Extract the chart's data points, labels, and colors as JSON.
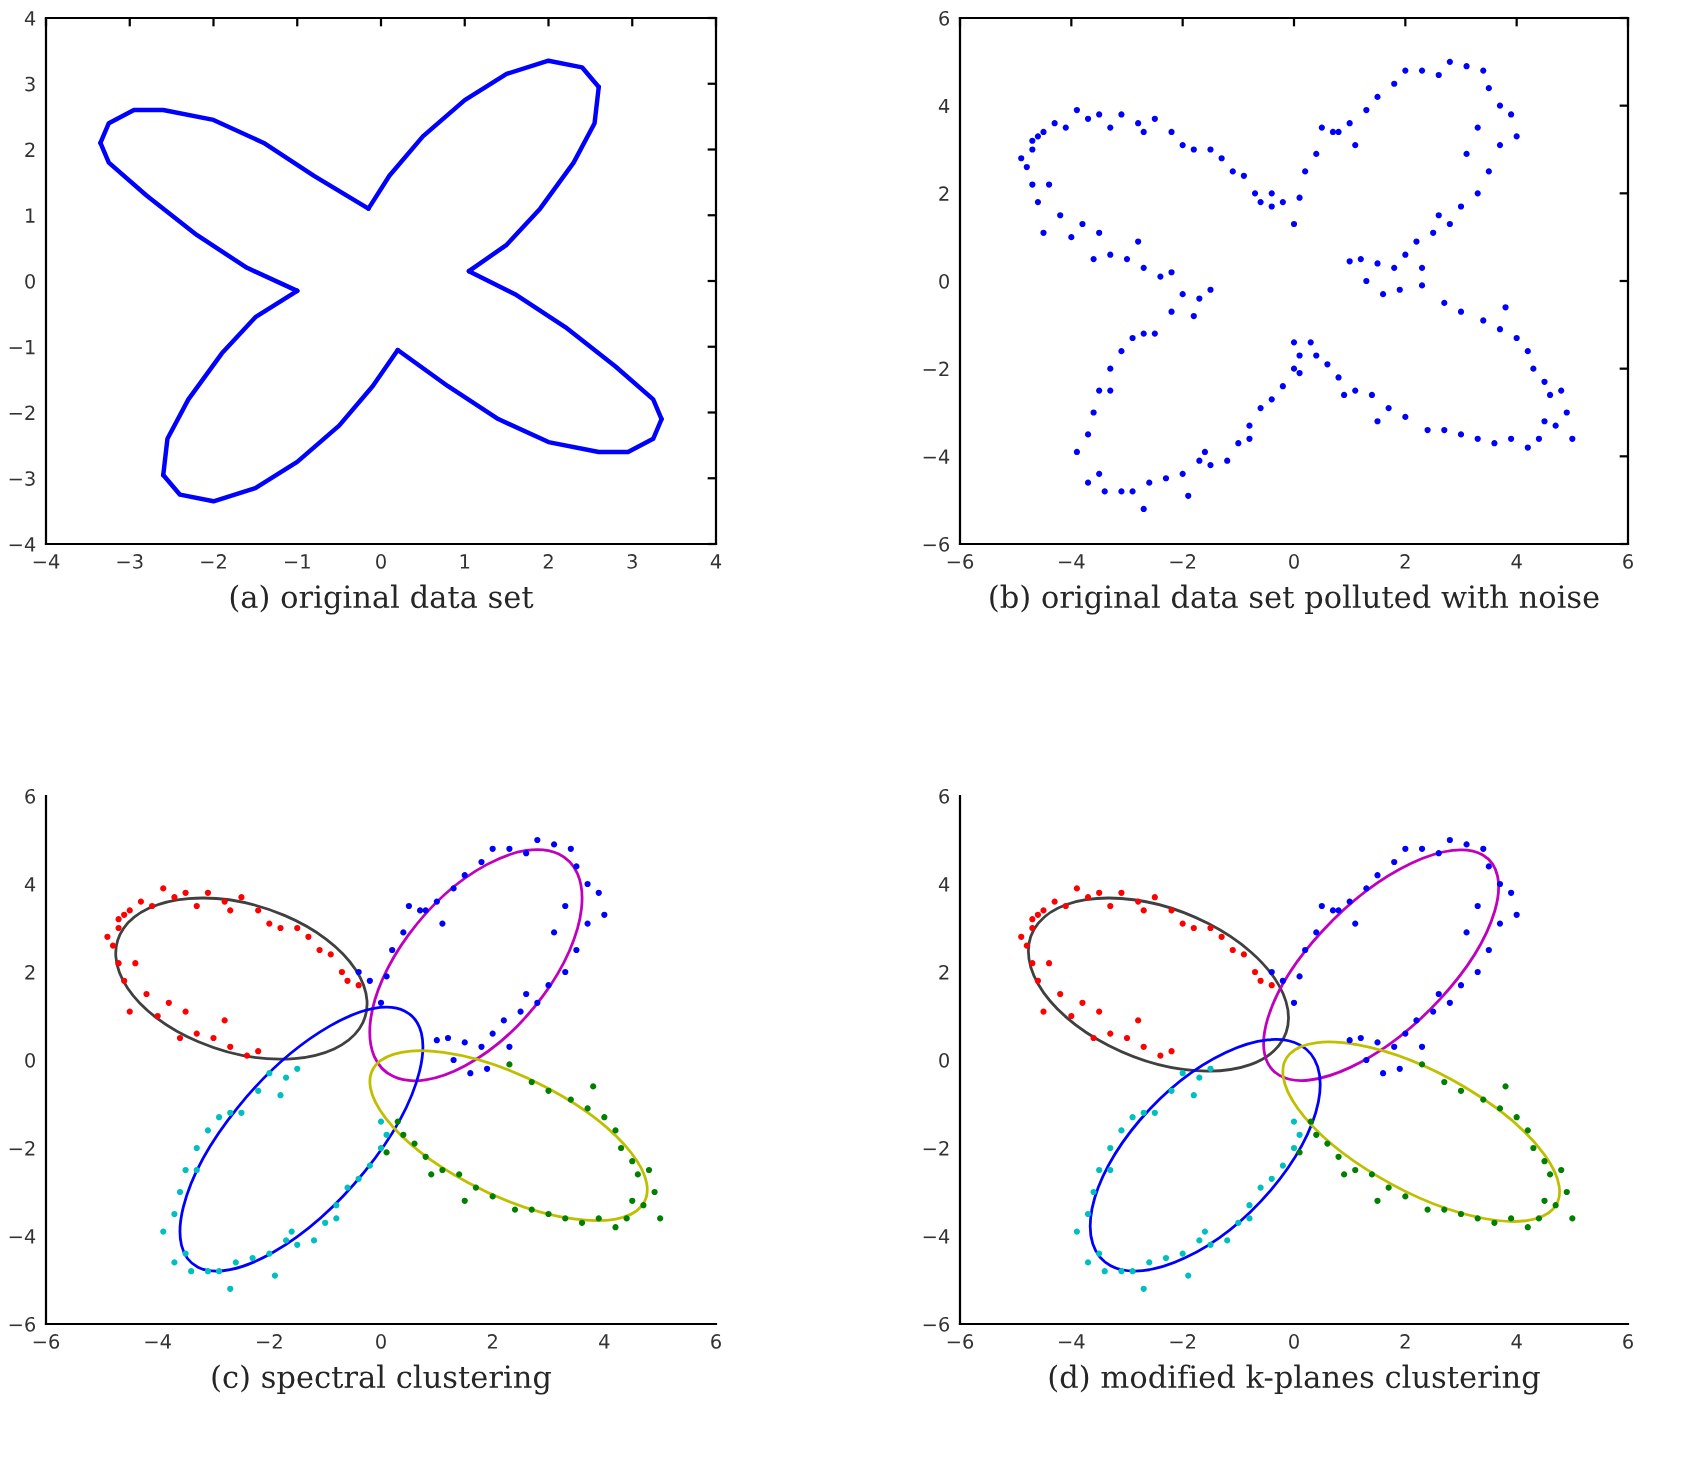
{
  "chart_data": [
    {
      "type": "line",
      "xlim": [
        -4,
        4
      ],
      "ylim": [
        -4,
        4
      ],
      "xticks": [
        -4,
        -3,
        -2,
        -1,
        0,
        1,
        2,
        3,
        4
      ],
      "yticks": [
        -4,
        -3,
        -2,
        -1,
        0,
        1,
        2,
        3,
        4
      ],
      "grid": false,
      "legend": false,
      "annotations": [
        "(a) original data set"
      ],
      "series": [
        {
          "color": "#0000ff",
          "x": [
            -0.15,
            0.1,
            0.5,
            1.0,
            1.5,
            2.0,
            2.4,
            2.6
          ],
          "values": [
            1.1,
            1.6,
            2.2,
            2.75,
            3.15,
            3.35,
            3.25,
            2.95
          ]
        },
        {
          "color": "#0000ff",
          "x": [
            2.6,
            2.55,
            2.3,
            1.9,
            1.5,
            1.05
          ],
          "values": [
            2.95,
            2.4,
            1.8,
            1.1,
            0.55,
            0.15
          ]
        },
        {
          "color": "#0000ff",
          "x": [
            1.05,
            1.6,
            2.2,
            2.8,
            3.25,
            3.35
          ],
          "values": [
            0.15,
            -0.2,
            -0.7,
            -1.3,
            -1.8,
            -2.1
          ]
        },
        {
          "color": "#0000ff",
          "x": [
            3.35,
            3.25,
            2.95,
            2.6,
            2.0,
            1.4,
            0.8,
            0.2
          ],
          "values": [
            -2.1,
            -2.4,
            -2.6,
            -2.6,
            -2.45,
            -2.1,
            -1.6,
            -1.05
          ]
        },
        {
          "color": "#0000ff",
          "x": [
            0.2,
            -0.1,
            -0.5,
            -1.0,
            -1.5,
            -2.0,
            -2.4,
            -2.6
          ],
          "values": [
            -1.05,
            -1.6,
            -2.2,
            -2.75,
            -3.15,
            -3.35,
            -3.25,
            -2.95
          ]
        },
        {
          "color": "#0000ff",
          "x": [
            -2.6,
            -2.55,
            -2.3,
            -1.9,
            -1.5,
            -1.0
          ],
          "values": [
            -2.95,
            -2.4,
            -1.8,
            -1.1,
            -0.55,
            -0.15
          ]
        },
        {
          "color": "#0000ff",
          "x": [
            -1.0,
            -1.6,
            -2.2,
            -2.8,
            -3.25,
            -3.35
          ],
          "values": [
            -0.15,
            0.2,
            0.7,
            1.3,
            1.8,
            2.1
          ]
        },
        {
          "color": "#0000ff",
          "x": [
            -3.35,
            -3.25,
            -2.95,
            -2.6,
            -2.0,
            -1.4,
            -0.8,
            -0.15
          ],
          "values": [
            2.1,
            2.4,
            2.6,
            2.6,
            2.45,
            2.1,
            1.6,
            1.1
          ]
        }
      ]
    },
    {
      "type": "scatter",
      "marker": "circle",
      "xlim": [
        -6,
        6
      ],
      "ylim": [
        -6,
        6
      ],
      "xticks": [
        -6,
        -4,
        -2,
        0,
        2,
        4,
        6
      ],
      "yticks": [
        -6,
        -4,
        -2,
        0,
        2,
        4,
        6
      ],
      "grid": false,
      "legend": false,
      "annotations": [
        "(b) original data set polluted with noise"
      ],
      "series": [
        {
          "color": "#0000ff",
          "x": [
            -4.9,
            -4.8,
            -4.7,
            -4.7,
            -4.6,
            -4.5,
            -4.3,
            -4.1,
            -3.9,
            -3.7,
            -3.5,
            -3.3,
            -3.1,
            -2.8,
            -2.5,
            -2.7,
            -2.2,
            -2.0,
            -1.8,
            -1.5,
            -1.3,
            -1.1,
            -0.9,
            -0.7,
            -0.6,
            -0.4,
            -4.7,
            -4.6,
            -4.4,
            -4.5,
            -4.2,
            -4.0,
            -3.8,
            -3.5,
            -3.6,
            -3.3,
            -3.0,
            -2.8,
            -2.7,
            -2.4,
            -2.2,
            -2.0,
            -1.7,
            -1.5,
            -1.8,
            -2.2,
            -2.5,
            -2.7,
            -2.9,
            -3.1,
            -3.3,
            -3.5,
            -3.3,
            -3.6,
            -3.7,
            -3.9,
            -3.7,
            -3.5,
            -3.4,
            -3.1,
            -2.9,
            -2.7,
            -2.6,
            -2.3,
            -2.0,
            -1.9,
            -1.7,
            -1.5,
            -1.2,
            -1.0,
            -0.8,
            -0.6,
            -0.4,
            -0.2,
            0.0,
            0.1,
            0.0,
            -0.8,
            -1.6,
            -0.4,
            -0.2,
            0,
            0.1,
            0.2,
            0.4,
            0.5,
            0.7,
            1.0,
            1.1,
            1.3,
            1.5,
            1.8,
            2.0,
            2.3,
            2.6,
            2.8,
            3.1,
            3.4,
            3.5,
            3.7,
            3.9,
            4.0,
            3.7,
            3.5,
            3.3,
            3.0,
            2.8,
            2.5,
            2.2,
            2.0,
            1.8,
            1.5,
            1.2,
            1.3,
            1.6,
            1.9,
            2.3,
            3.1,
            3.3,
            2.6,
            1.0,
            0.8,
            2.3,
            2.7,
            3.0,
            3.4,
            3.7,
            4.0,
            4.2,
            4.3,
            4.5,
            4.6,
            4.8,
            4.9,
            5.0,
            4.7,
            4.4,
            4.2,
            3.9,
            3.6,
            3.3,
            3.0,
            2.7,
            2.4,
            2.0,
            1.7,
            1.4,
            1.1,
            0.8,
            0.6,
            0.4,
            0.3,
            0.1,
            1.5,
            0.9,
            3.8,
            4.5
          ],
          "values": [
            2.8,
            2.6,
            3.2,
            3.0,
            3.3,
            3.4,
            3.6,
            3.5,
            3.9,
            3.7,
            3.8,
            3.5,
            3.8,
            3.6,
            3.7,
            3.4,
            3.4,
            3.1,
            3.0,
            3.0,
            2.8,
            2.5,
            2.4,
            2.0,
            1.8,
            1.7,
            2.2,
            1.8,
            2.2,
            1.1,
            1.5,
            1.0,
            1.3,
            1.1,
            0.5,
            0.6,
            0.5,
            0.9,
            0.3,
            0.1,
            0.2,
            -0.3,
            -0.4,
            -0.2,
            -0.8,
            -0.7,
            -1.2,
            -1.2,
            -1.3,
            -1.6,
            -2.0,
            -2.5,
            -2.5,
            -3.0,
            -3.5,
            -3.9,
            -4.6,
            -4.4,
            -4.8,
            -4.8,
            -4.8,
            -5.2,
            -4.6,
            -4.5,
            -4.4,
            -4.9,
            -4.1,
            -4.2,
            -4.1,
            -3.7,
            -3.3,
            -2.9,
            -2.7,
            -2.4,
            -2.0,
            -1.7,
            -1.4,
            -3.6,
            -3.9,
            2.0,
            1.8,
            1.3,
            1.9,
            2.5,
            2.9,
            3.5,
            3.4,
            3.6,
            3.1,
            3.9,
            4.2,
            4.5,
            4.8,
            4.8,
            4.7,
            5.0,
            4.9,
            4.8,
            4.4,
            4.0,
            3.8,
            3.3,
            3.1,
            2.5,
            2.0,
            1.7,
            1.3,
            1.1,
            0.9,
            0.6,
            0.3,
            0.4,
            0.5,
            0.0,
            -0.3,
            -0.2,
            0.3,
            2.9,
            3.5,
            1.5,
            0.45,
            3.4,
            -0.1,
            -0.5,
            -0.7,
            -0.9,
            -1.1,
            -1.3,
            -1.6,
            -2.0,
            -2.3,
            -2.6,
            -2.5,
            -3.0,
            -3.6,
            -3.3,
            -3.6,
            -3.8,
            -3.6,
            -3.7,
            -3.6,
            -3.5,
            -3.4,
            -3.4,
            -3.1,
            -2.9,
            -2.6,
            -2.5,
            -2.2,
            -1.9,
            -1.7,
            -1.4,
            -2.1,
            -3.2,
            -2.6,
            -0.6,
            -3.2
          ]
        }
      ]
    },
    {
      "type": "scatter",
      "marker": "circle",
      "xlim": [
        -6,
        6
      ],
      "ylim": [
        -6,
        6
      ],
      "xticks": [
        -6,
        -4,
        -2,
        0,
        2,
        4,
        6
      ],
      "yticks": [
        -6,
        -4,
        -2,
        0,
        2,
        4,
        6
      ],
      "grid": false,
      "legend": false,
      "annotations": [
        "(c) spectral clustering"
      ],
      "series": [
        {
          "color": "#ff0000",
          "x": [
            -4.9,
            -4.8,
            -4.7,
            -4.7,
            -4.6,
            -4.5,
            -4.3,
            -4.1,
            -3.9,
            -3.7,
            -3.5,
            -3.3,
            -3.1,
            -2.8,
            -2.5,
            -2.7,
            -2.2,
            -2.0,
            -1.8,
            -1.5,
            -1.3,
            -1.1,
            -0.9,
            -0.7,
            -0.6,
            -0.4,
            -4.7,
            -4.6,
            -4.4,
            -4.5,
            -4.2,
            -4.0,
            -3.8,
            -3.5,
            -3.6,
            -3.3,
            -3.0,
            -2.8,
            -2.7,
            -2.4,
            -2.2
          ],
          "values": [
            2.8,
            2.6,
            3.2,
            3.0,
            3.3,
            3.4,
            3.6,
            3.5,
            3.9,
            3.7,
            3.8,
            3.5,
            3.8,
            3.6,
            3.7,
            3.4,
            3.4,
            3.1,
            3.0,
            3.0,
            2.8,
            2.5,
            2.4,
            2.0,
            1.8,
            1.7,
            2.2,
            1.8,
            2.2,
            1.1,
            1.5,
            1.0,
            1.3,
            1.1,
            0.5,
            0.6,
            0.5,
            0.9,
            0.3,
            0.1,
            0.2
          ]
        },
        {
          "color": "#00bfbf",
          "x": [
            -2.0,
            -1.7,
            -1.5,
            -1.8,
            -2.2,
            -2.5,
            -2.7,
            -2.9,
            -3.1,
            -3.3,
            -3.5,
            -3.3,
            -3.6,
            -3.7,
            -3.9,
            -3.7,
            -3.5,
            -3.4,
            -3.1,
            -2.9,
            -2.7,
            -2.6,
            -2.3,
            -2.0,
            -1.9,
            -1.7,
            -1.5,
            -1.2,
            -1.0,
            -0.8,
            -0.6,
            -0.4,
            -0.2,
            0.0,
            0.1,
            0.0,
            -0.8,
            -1.6
          ],
          "values": [
            -0.3,
            -0.4,
            -0.2,
            -0.8,
            -0.7,
            -1.2,
            -1.2,
            -1.3,
            -1.6,
            -2.0,
            -2.5,
            -2.5,
            -3.0,
            -3.5,
            -3.9,
            -4.6,
            -4.4,
            -4.8,
            -4.8,
            -4.8,
            -5.2,
            -4.6,
            -4.5,
            -4.4,
            -4.9,
            -4.1,
            -4.2,
            -4.1,
            -3.7,
            -3.3,
            -2.9,
            -2.7,
            -2.4,
            -2.0,
            -1.7,
            -1.4,
            -3.6,
            -3.9
          ]
        },
        {
          "color": "#0000ff",
          "x": [
            -0.4,
            -0.2,
            0,
            0.1,
            0.2,
            0.4,
            0.5,
            0.7,
            1.0,
            1.1,
            1.3,
            1.5,
            1.8,
            2.0,
            2.3,
            2.6,
            2.8,
            3.1,
            3.4,
            3.5,
            3.7,
            3.9,
            4.0,
            3.7,
            3.5,
            3.3,
            3.0,
            2.8,
            2.5,
            2.2,
            2.0,
            1.8,
            1.5,
            1.2,
            1.3,
            1.6,
            1.9,
            2.3,
            3.1,
            3.3,
            2.6,
            1.0,
            0.8
          ],
          "values": [
            2.0,
            1.8,
            1.3,
            1.9,
            2.5,
            2.9,
            3.5,
            3.4,
            3.6,
            3.1,
            3.9,
            4.2,
            4.5,
            4.8,
            4.8,
            4.7,
            5.0,
            4.9,
            4.8,
            4.4,
            4.0,
            3.8,
            3.3,
            3.1,
            2.5,
            2.0,
            1.7,
            1.3,
            1.1,
            0.9,
            0.6,
            0.3,
            0.4,
            0.5,
            0.0,
            -0.3,
            -0.2,
            0.3,
            2.9,
            3.5,
            1.5,
            0.45,
            3.4
          ]
        },
        {
          "color": "#008000",
          "x": [
            2.3,
            2.7,
            3.0,
            3.4,
            3.7,
            4.0,
            4.2,
            4.3,
            4.5,
            4.6,
            4.8,
            4.9,
            5.0,
            4.7,
            4.4,
            4.2,
            3.9,
            3.6,
            3.3,
            3.0,
            2.7,
            2.4,
            2.0,
            1.7,
            1.4,
            1.1,
            0.8,
            0.6,
            0.4,
            0.3,
            0.1,
            1.5,
            0.9,
            3.8,
            4.5
          ],
          "values": [
            -0.1,
            -0.5,
            -0.7,
            -0.9,
            -1.1,
            -1.3,
            -1.6,
            -2.0,
            -2.3,
            -2.6,
            -2.5,
            -3.0,
            -3.6,
            -3.3,
            -3.6,
            -3.8,
            -3.6,
            -3.7,
            -3.6,
            -3.5,
            -3.4,
            -3.4,
            -3.1,
            -2.9,
            -2.6,
            -2.5,
            -2.2,
            -1.9,
            -1.7,
            -1.4,
            -2.1,
            -3.2,
            -2.6,
            -0.6,
            -3.2
          ]
        }
      ]
    },
    {
      "type": "scatter",
      "marker": "circle",
      "xlim": [
        -6,
        6
      ],
      "ylim": [
        -6,
        6
      ],
      "xticks": [
        -6,
        -4,
        -2,
        0,
        2,
        4,
        6
      ],
      "yticks": [
        -6,
        -4,
        -2,
        0,
        2,
        4,
        6
      ],
      "grid": false,
      "legend": false,
      "annotations": [
        "(d) modified k-planes clustering"
      ],
      "series": [
        {
          "color": "#ff0000",
          "x": [
            -4.9,
            -4.8,
            -4.7,
            -4.7,
            -4.6,
            -4.5,
            -4.3,
            -4.1,
            -3.9,
            -3.7,
            -3.5,
            -3.3,
            -3.1,
            -2.8,
            -2.5,
            -2.7,
            -2.2,
            -2.0,
            -1.8,
            -1.5,
            -1.3,
            -1.1,
            -0.9,
            -0.7,
            -0.6,
            -0.4,
            -4.7,
            -4.6,
            -4.4,
            -4.5,
            -4.2,
            -4.0,
            -3.8,
            -3.5,
            -3.6,
            -3.3,
            -3.0,
            -2.8,
            -2.7,
            -2.4,
            -2.2
          ],
          "values": [
            2.8,
            2.6,
            3.2,
            3.0,
            3.3,
            3.4,
            3.6,
            3.5,
            3.9,
            3.7,
            3.8,
            3.5,
            3.8,
            3.6,
            3.7,
            3.4,
            3.4,
            3.1,
            3.0,
            3.0,
            2.8,
            2.5,
            2.4,
            2.0,
            1.8,
            1.7,
            2.2,
            1.8,
            2.2,
            1.1,
            1.5,
            1.0,
            1.3,
            1.1,
            0.5,
            0.6,
            0.5,
            0.9,
            0.3,
            0.1,
            0.2
          ]
        },
        {
          "color": "#00bfbf",
          "x": [
            -2.0,
            -1.7,
            -1.5,
            -1.8,
            -2.2,
            -2.5,
            -2.7,
            -2.9,
            -3.1,
            -3.3,
            -3.5,
            -3.3,
            -3.6,
            -3.7,
            -3.9,
            -3.7,
            -3.5,
            -3.4,
            -3.1,
            -2.9,
            -2.7,
            -2.6,
            -2.3,
            -2.0,
            -1.9,
            -1.7,
            -1.5,
            -1.2,
            -1.0,
            -0.8,
            -0.6,
            -0.4,
            -0.2,
            0.0,
            0.1,
            0.0,
            -0.8,
            -1.6
          ],
          "values": [
            -0.3,
            -0.4,
            -0.2,
            -0.8,
            -0.7,
            -1.2,
            -1.2,
            -1.3,
            -1.6,
            -2.0,
            -2.5,
            -2.5,
            -3.0,
            -3.5,
            -3.9,
            -4.6,
            -4.4,
            -4.8,
            -4.8,
            -4.8,
            -5.2,
            -4.6,
            -4.5,
            -4.4,
            -4.9,
            -4.1,
            -4.2,
            -4.1,
            -3.7,
            -3.3,
            -2.9,
            -2.7,
            -2.4,
            -2.0,
            -1.7,
            -1.4,
            -3.6,
            -3.9
          ]
        },
        {
          "color": "#0000ff",
          "x": [
            -0.4,
            -0.2,
            0,
            0.1,
            0.2,
            0.4,
            0.5,
            0.7,
            1.0,
            1.1,
            1.3,
            1.5,
            1.8,
            2.0,
            2.3,
            2.6,
            2.8,
            3.1,
            3.4,
            3.5,
            3.7,
            3.9,
            4.0,
            3.7,
            3.5,
            3.3,
            3.0,
            2.8,
            2.5,
            2.2,
            2.0,
            1.8,
            1.5,
            1.2,
            1.3,
            1.6,
            1.9,
            2.3,
            3.1,
            3.3,
            2.6,
            1.0,
            0.8
          ],
          "values": [
            2.0,
            1.8,
            1.3,
            1.9,
            2.5,
            2.9,
            3.5,
            3.4,
            3.6,
            3.1,
            3.9,
            4.2,
            4.5,
            4.8,
            4.8,
            4.7,
            5.0,
            4.9,
            4.8,
            4.4,
            4.0,
            3.8,
            3.3,
            3.1,
            2.5,
            2.0,
            1.7,
            1.3,
            1.1,
            0.9,
            0.6,
            0.3,
            0.4,
            0.5,
            0.0,
            -0.3,
            -0.2,
            0.3,
            2.9,
            3.5,
            1.5,
            0.45,
            3.4
          ]
        },
        {
          "color": "#008000",
          "x": [
            2.3,
            2.7,
            3.0,
            3.4,
            3.7,
            4.0,
            4.2,
            4.3,
            4.5,
            4.6,
            4.8,
            4.9,
            5.0,
            4.7,
            4.4,
            4.2,
            3.9,
            3.6,
            3.3,
            3.0,
            2.7,
            2.4,
            2.0,
            1.7,
            1.4,
            1.1,
            0.8,
            0.6,
            0.4,
            0.3,
            0.1,
            1.5,
            0.9,
            3.8,
            4.5
          ],
          "values": [
            -0.1,
            -0.5,
            -0.7,
            -0.9,
            -1.1,
            -1.3,
            -1.6,
            -2.0,
            -2.3,
            -2.6,
            -2.5,
            -3.0,
            -3.6,
            -3.3,
            -3.6,
            -3.8,
            -3.6,
            -3.7,
            -3.6,
            -3.5,
            -3.4,
            -3.4,
            -3.1,
            -2.9,
            -2.6,
            -2.5,
            -2.2,
            -1.9,
            -1.7,
            -1.4,
            -2.1,
            -3.2,
            -2.6,
            -0.6,
            -3.2
          ]
        }
      ]
    }
  ]
}
